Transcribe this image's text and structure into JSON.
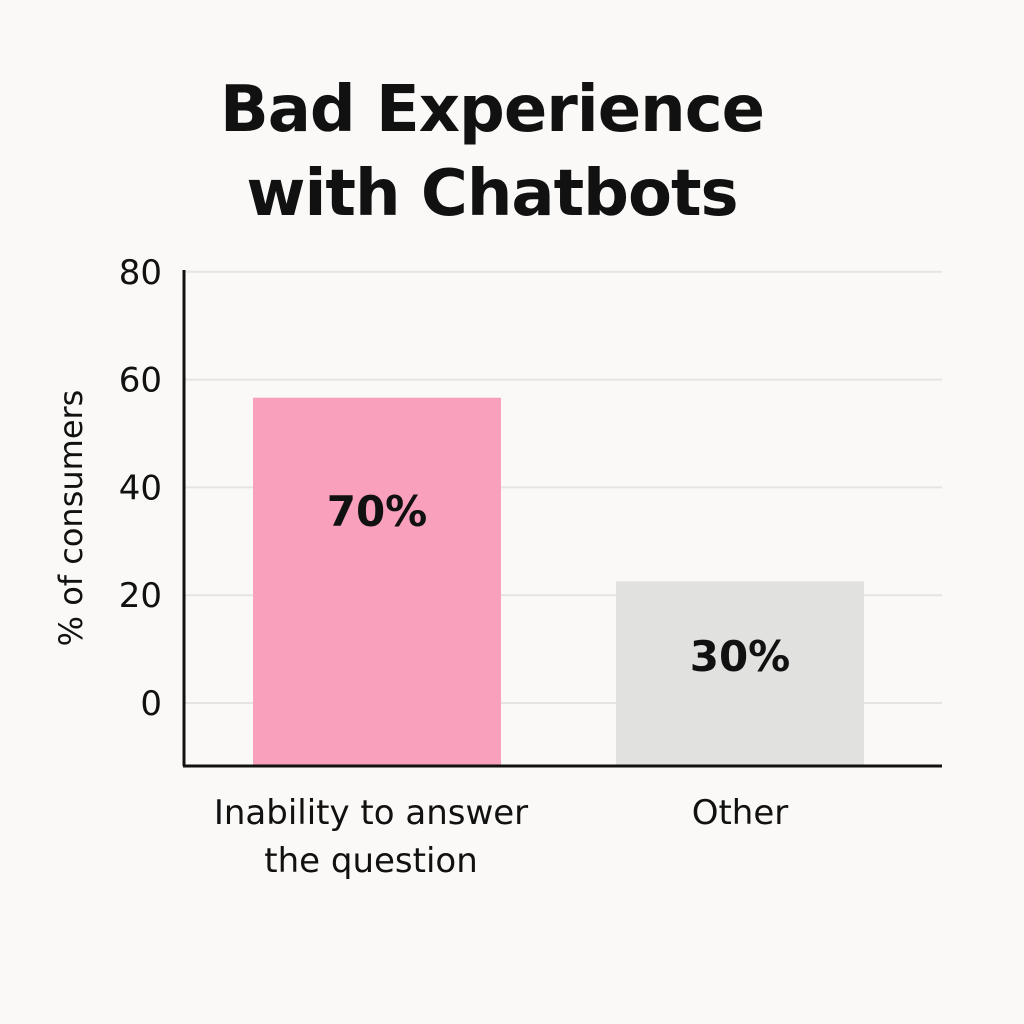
{
  "chart_data": {
    "type": "bar",
    "title_lines": [
      "Bad Experience",
      "with Chatbots"
    ],
    "categories": [
      [
        "Inability to answer",
        "the question"
      ],
      [
        "Other"
      ]
    ],
    "values": [
      70,
      30
    ],
    "value_labels": [
      "70%",
      "30%"
    ],
    "colors": [
      "#f9a0bc",
      "#e1e1df"
    ],
    "ylabel": "% of consumers",
    "yticks": [
      0,
      20,
      40,
      60,
      80
    ],
    "ytick_labels": [
      "0",
      "20",
      "40",
      "60",
      "80"
    ],
    "grid": true,
    "legend": "none"
  }
}
